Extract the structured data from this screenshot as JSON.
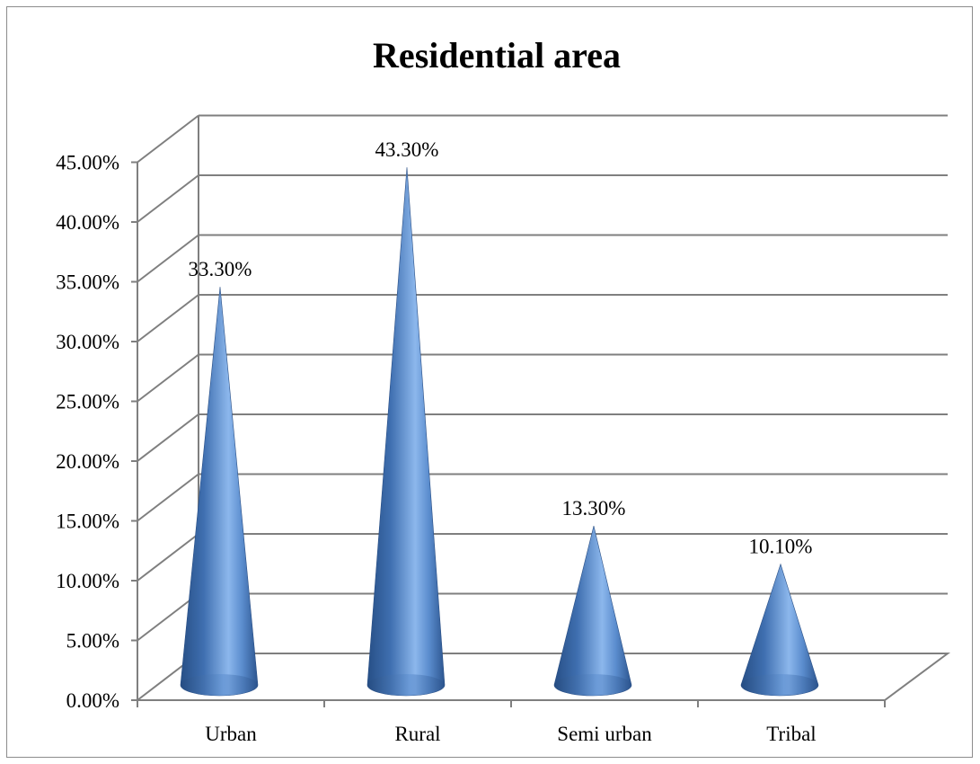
{
  "chart_data": {
    "type": "bar",
    "bar_shape": "cone",
    "title": "Residential area",
    "xlabel": "",
    "ylabel": "",
    "categories": [
      "Urban",
      "Rural",
      "Semi urban",
      "Tribal"
    ],
    "values": [
      33.3,
      43.3,
      13.3,
      10.1
    ],
    "data_labels": [
      "33.30%",
      "43.30%",
      "13.30%",
      "10.10%"
    ],
    "ylim": [
      0,
      45
    ],
    "y_ticks": [
      0,
      5,
      10,
      15,
      20,
      25,
      30,
      35,
      40,
      45
    ],
    "y_tick_labels": [
      "0.00%",
      "5.00%",
      "10.00%",
      "15.00%",
      "20.00%",
      "25.00%",
      "30.00%",
      "35.00%",
      "40.00%",
      "45.00%"
    ],
    "grid": true,
    "legend": "none",
    "colors": {
      "cone_dark": "#2f5a94",
      "cone_mid": "#4a7cc0",
      "cone_light": "#8fb9ee",
      "grid": "#7f7f7f"
    }
  }
}
